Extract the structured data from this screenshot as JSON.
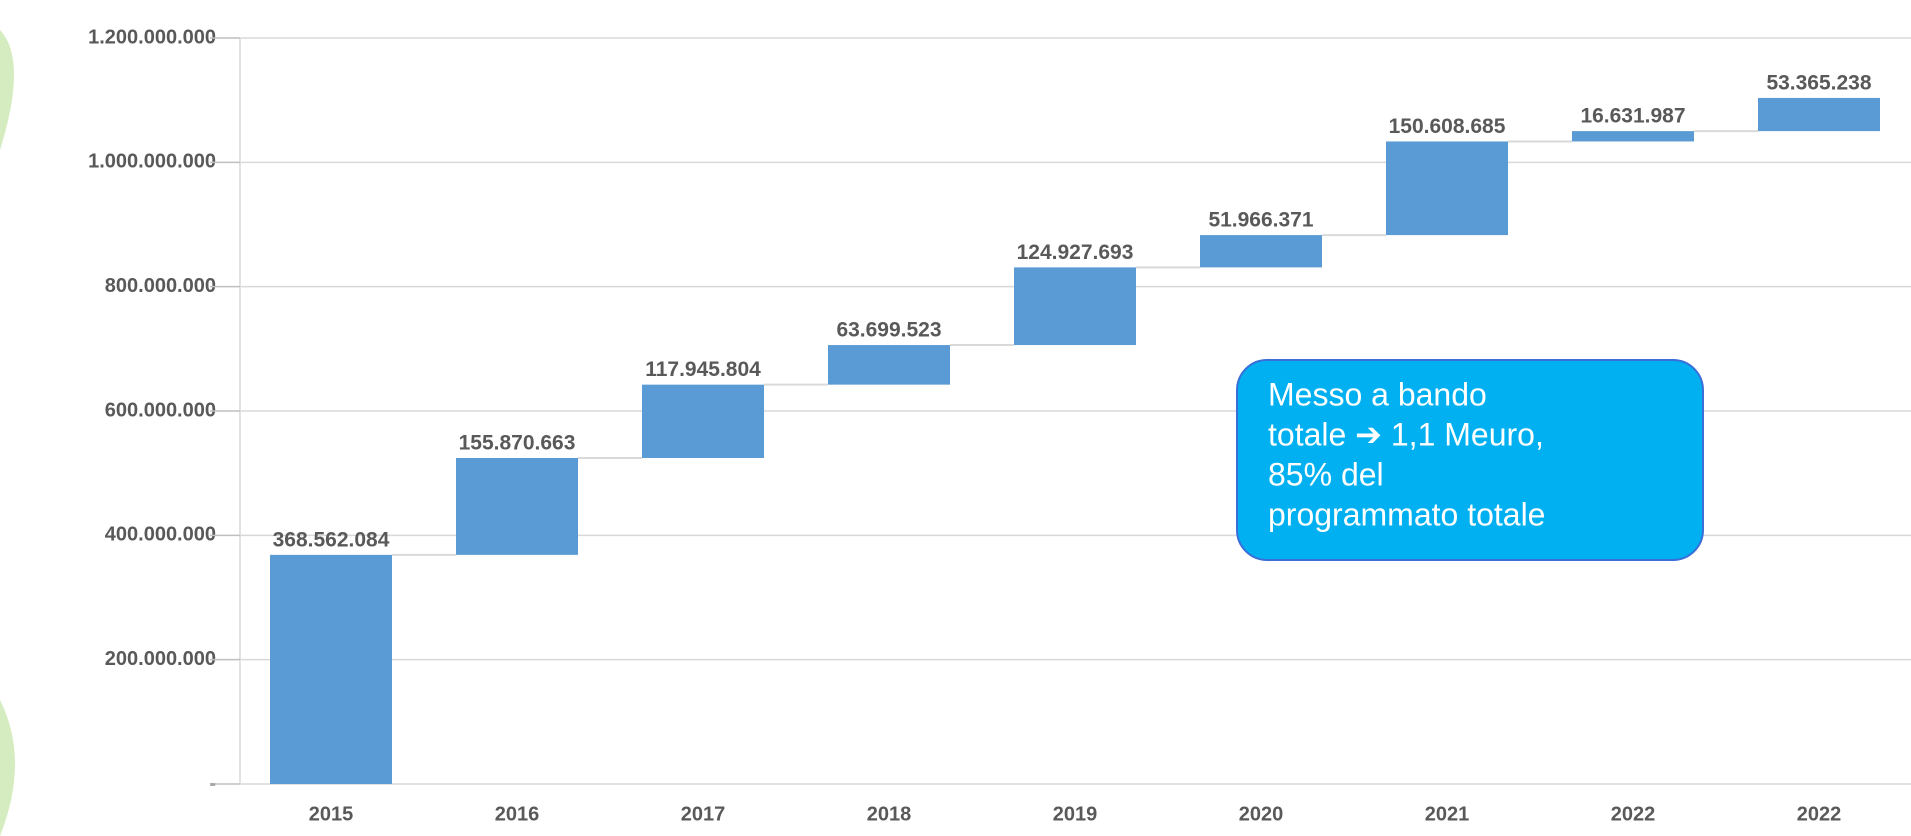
{
  "chart_data": {
    "type": "waterfall",
    "categories": [
      "2015",
      "2016",
      "2017",
      "2018",
      "2019",
      "2020",
      "2021",
      "2022",
      "2022"
    ],
    "values": [
      368562084,
      155870663,
      117945804,
      63699523,
      124927693,
      51966371,
      150608685,
      16631987,
      53365238
    ],
    "value_labels": [
      "368.562.084",
      "155.870.663",
      "117.945.804",
      "63.699.523",
      "124.927.693",
      "51.966.371",
      "150.608.685",
      "16.631.987",
      "53.365.238"
    ],
    "color": "#5b9bd5",
    "ylim": [
      0,
      1200000000
    ],
    "yticks": [
      {
        "value": 0,
        "label": "-"
      },
      {
        "value": 200000000,
        "label": "200.000.000"
      },
      {
        "value": 400000000,
        "label": "400.000.000"
      },
      {
        "value": 600000000,
        "label": "600.000.000"
      },
      {
        "value": 800000000,
        "label": "800.000.000"
      },
      {
        "value": 1000000000,
        "label": "1.000.000.000"
      },
      {
        "value": 1200000000,
        "label": "1.200.000.000"
      }
    ],
    "grid": true,
    "annotation": [
      "Messo a bando",
      "totale ➔ 1,1 Meuro,",
      "85% del",
      "programmato totale"
    ]
  }
}
